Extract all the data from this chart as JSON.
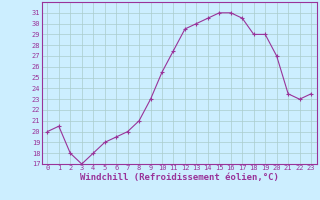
{
  "hours": [
    0,
    1,
    2,
    3,
    4,
    5,
    6,
    7,
    8,
    9,
    10,
    11,
    12,
    13,
    14,
    15,
    16,
    17,
    18,
    19,
    20,
    21,
    22,
    23
  ],
  "temps": [
    20,
    20.5,
    18,
    17,
    18,
    19,
    19.5,
    20,
    21,
    23,
    25.5,
    27.5,
    29.5,
    30,
    30.5,
    31,
    31,
    30.5,
    29,
    29,
    27,
    23.5,
    23,
    23.5
  ],
  "line_color": "#993399",
  "marker": "+",
  "bg_color": "#cceeff",
  "grid_color": "#aacccc",
  "axis_color": "#993399",
  "xlabel": "Windchill (Refroidissement éolien,°C)",
  "ylim": [
    17,
    32
  ],
  "xlim": [
    -0.5,
    23.5
  ],
  "yticks": [
    17,
    18,
    19,
    20,
    21,
    22,
    23,
    24,
    25,
    26,
    27,
    28,
    29,
    30,
    31
  ],
  "xticks": [
    0,
    1,
    2,
    3,
    4,
    5,
    6,
    7,
    8,
    9,
    10,
    11,
    12,
    13,
    14,
    15,
    16,
    17,
    18,
    19,
    20,
    21,
    22,
    23
  ],
  "tick_fontsize": 5,
  "label_fontsize": 6.5,
  "marker_size": 3,
  "line_width": 0.8
}
